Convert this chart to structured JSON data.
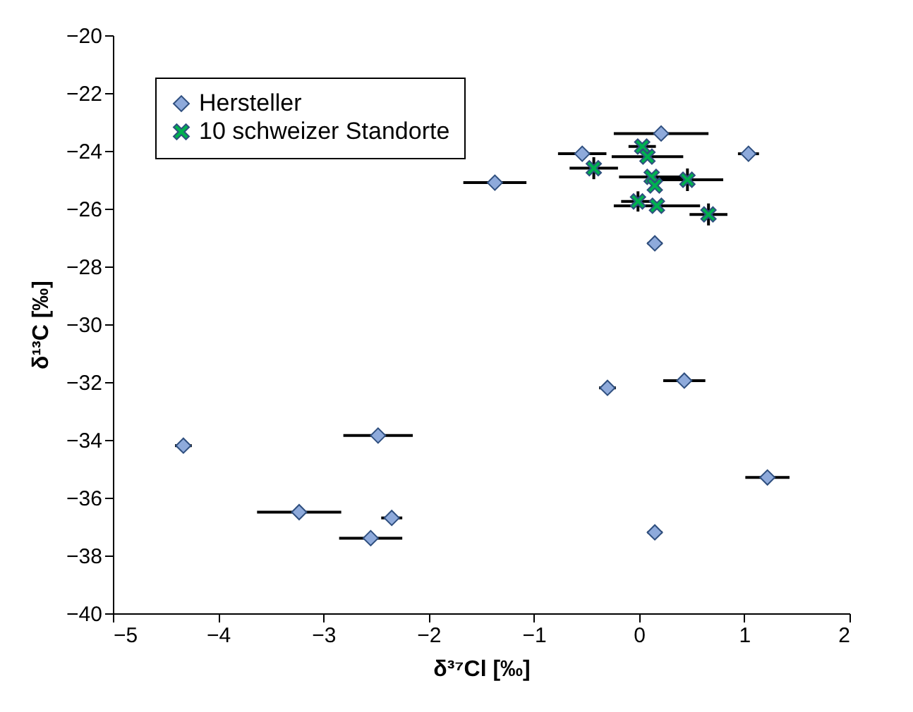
{
  "chart_data": {
    "type": "scatter",
    "xlabel": "δ³⁷Cl [‰]",
    "ylabel": "δ¹³C [‰]",
    "xlim": [
      -5,
      2
    ],
    "xticks": [
      -5,
      -4,
      -3,
      -2,
      -1,
      0,
      1,
      2
    ],
    "ylim": [
      -40,
      -20
    ],
    "yticks": [
      -40,
      -38,
      -36,
      -34,
      -32,
      -30,
      -28,
      -26,
      -24,
      -22,
      -20
    ],
    "grid": false,
    "legend": "top left",
    "series": [
      {
        "name": "Hersteller",
        "color": "#8eaadb",
        "marker": "diamond",
        "x": [
          0.21,
          -0.54,
          1.04,
          -1.37,
          0.15,
          1.22,
          0.15,
          -0.3,
          0.43,
          -4.33,
          -2.48,
          -3.23,
          -2.35,
          -2.55
        ],
        "values": [
          -23.4,
          -24.1,
          -24.1,
          -25.1,
          -27.2,
          -35.3,
          -37.2,
          -32.2,
          -31.95,
          -34.2,
          -33.85,
          -36.5,
          -36.7,
          -37.4
        ],
        "xerrors": [
          0.45,
          0.23,
          0.1,
          0.3,
          0.07,
          0.21,
          0.07,
          0.08,
          0.2,
          0.08,
          0.33,
          0.4,
          0.1,
          0.3
        ]
      },
      {
        "name": "10 schweizer Standorte",
        "color": "#00b050",
        "marker": "cross",
        "x": [
          0.03,
          0.08,
          -0.43,
          0.12,
          0.15,
          0.46,
          -0.01,
          0.17,
          0.66
        ],
        "values": [
          -23.85,
          -24.2,
          -24.6,
          -24.9,
          -25.2,
          -25.0,
          -25.75,
          -25.9,
          -26.2
        ],
        "xerrors": [
          0.13,
          0.34,
          0.23,
          0.31,
          null,
          0.34,
          0.16,
          0.41,
          0.18
        ],
        "errors": [
          null,
          null,
          0.38,
          null,
          null,
          0.39,
          0.35,
          null,
          0.38
        ]
      }
    ]
  }
}
